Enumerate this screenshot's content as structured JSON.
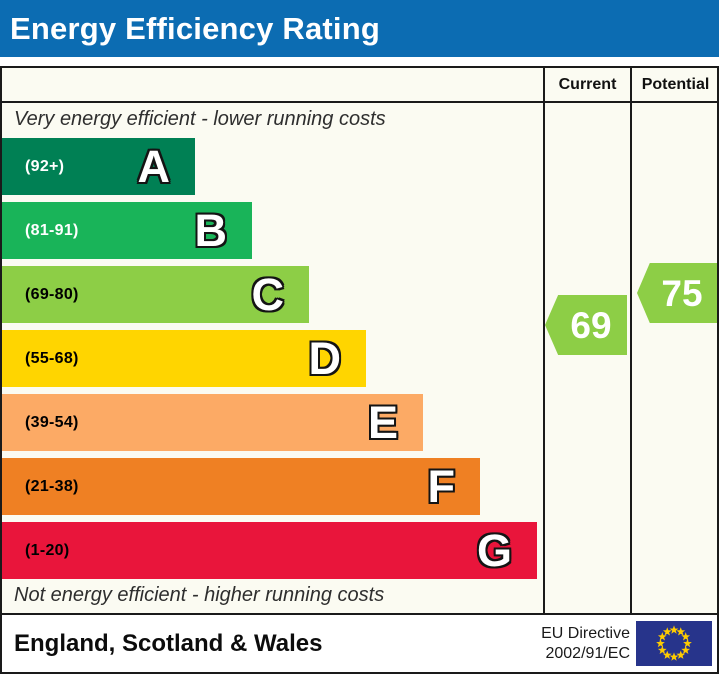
{
  "title": "Energy Efficiency Rating",
  "chart_data": {
    "type": "bar",
    "title": "Energy Efficiency Rating",
    "columns": [
      "Current",
      "Potential"
    ],
    "top_note": "Very energy efficient - lower running costs",
    "bottom_note": "Not energy efficient - higher running costs",
    "categories": [
      "A",
      "B",
      "C",
      "D",
      "E",
      "F",
      "G"
    ],
    "ranges": [
      "(92+)",
      "(81-91)",
      "(69-80)",
      "(55-68)",
      "(39-54)",
      "(21-38)",
      "(1-20)"
    ],
    "band_colors": [
      "#008054",
      "#19b459",
      "#8dce46",
      "#ffd500",
      "#fcaa65",
      "#ef8023",
      "#e9153b"
    ],
    "current_rating": 69,
    "potential_rating": 75,
    "current_band": "C",
    "potential_band": "C",
    "region": "England, Scotland & Wales",
    "directive": "EU Directive 2002/91/EC"
  },
  "table": {
    "current_header": "Current",
    "potential_header": "Potential",
    "top_note": "Very energy efficient - lower running costs",
    "bottom_note": "Not energy efficient - higher running costs",
    "bands": [
      {
        "letter": "A",
        "range": "(92+)",
        "color": "#008054",
        "text_color": "#ffffff"
      },
      {
        "letter": "B",
        "range": "(81-91)",
        "color": "#19b459",
        "text_color": "#ffffff"
      },
      {
        "letter": "C",
        "range": "(69-80)",
        "color": "#8dce46",
        "text_color": "#000000"
      },
      {
        "letter": "D",
        "range": "(55-68)",
        "color": "#ffd500",
        "text_color": "#000000"
      },
      {
        "letter": "E",
        "range": "(39-54)",
        "color": "#fcaa65",
        "text_color": "#000000"
      },
      {
        "letter": "F",
        "range": "(21-38)",
        "color": "#ef8023",
        "text_color": "#000000"
      },
      {
        "letter": "G",
        "range": "(1-20)",
        "color": "#e9153b",
        "text_color": "#000000"
      }
    ],
    "current_arrow": {
      "value": "69",
      "color": "#8dce46"
    },
    "potential_arrow": {
      "value": "75",
      "color": "#8dce46"
    }
  },
  "footer": {
    "region": "England, Scotland & Wales",
    "directive_line1": "EU Directive",
    "directive_line2": "2002/91/EC"
  },
  "colors": {
    "header_bg": "#0c6cb2",
    "arrow_green": "#8dce46",
    "eu_flag_blue": "#27348b",
    "eu_star_yellow": "#ffcc00"
  }
}
